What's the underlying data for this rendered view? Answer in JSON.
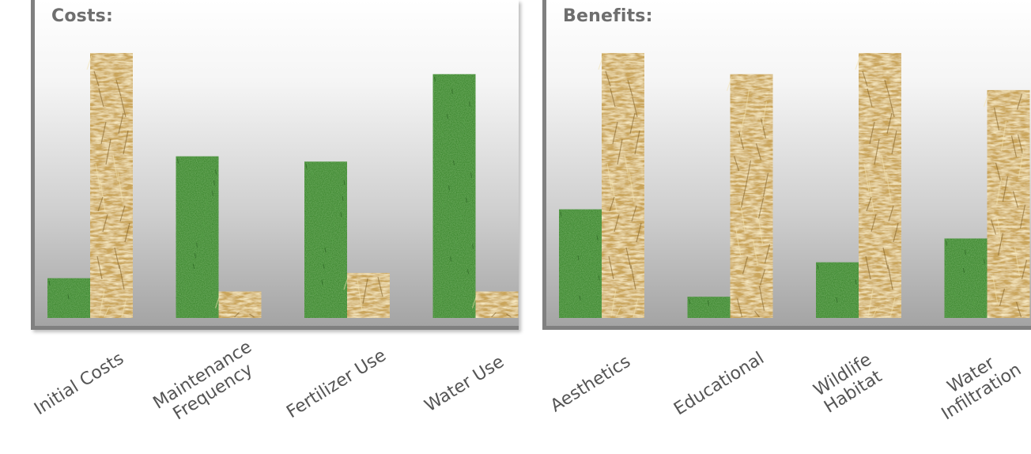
{
  "colors": {
    "lawn": "#3f8a33",
    "lawn_dark": "#2f6e26",
    "straw": "#c9a45a",
    "straw_dark": "#8f6e2c",
    "axis": "#808080",
    "title": "#6e6e6e",
    "label": "#555555"
  },
  "chart_data": [
    {
      "type": "bar",
      "title": "Costs:",
      "categories": [
        "Initial Costs",
        "Maintenance\nFrequency",
        "Fertilizer Use",
        "Water Use"
      ],
      "series": [
        {
          "values": [
            15,
            61,
            59,
            92
          ],
          "texture": "grass"
        },
        {
          "values": [
            100,
            10,
            17,
            10
          ],
          "texture": "straw"
        }
      ],
      "ylim": [
        0,
        100
      ],
      "grid": false,
      "legend": "none"
    },
    {
      "type": "bar",
      "title": "Benefits:",
      "categories": [
        "Aesthetics",
        "Educational",
        "Wildlife\nHabitat",
        "Water\nInfiltration"
      ],
      "series": [
        {
          "values": [
            41,
            8,
            21,
            30
          ],
          "texture": "grass"
        },
        {
          "values": [
            100,
            92,
            100,
            86
          ],
          "texture": "straw"
        }
      ],
      "ylim": [
        0,
        100
      ],
      "grid": false,
      "legend": "none"
    }
  ]
}
